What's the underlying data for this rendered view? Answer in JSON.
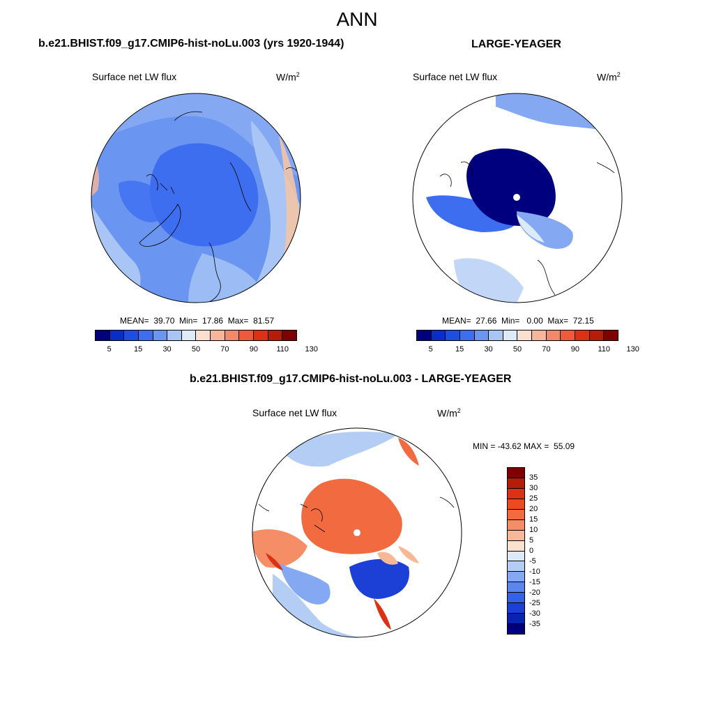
{
  "figure": {
    "season": "ANN"
  },
  "panel_left": {
    "title": "b.e21.BHIST.f09_g17.CMIP6-hist-noLu.003 (yrs 1920-1944)",
    "variable": "Surface net LW flux",
    "units": "W/m",
    "units_exp": "2",
    "stats": "MEAN=  39.70  Min=  17.86  Max=  81.57"
  },
  "panel_right": {
    "title": "LARGE-YEAGER",
    "variable": "Surface net LW flux",
    "units": "W/m",
    "units_exp": "2",
    "stats": "MEAN=  27.66  Min=   0.00  Max=  72.15"
  },
  "panel_diff": {
    "title": "b.e21.BHIST.f09_g17.CMIP6-hist-noLu.003 - LARGE-YEAGER",
    "variable": "Surface net LW flux",
    "units": "W/m",
    "units_exp": "2",
    "stats": "MIN = -43.62 MAX =  55.09"
  },
  "colorbar_abs": {
    "tick_labels": [
      "5",
      "15",
      "30",
      "50",
      "70",
      "90",
      "110",
      "130"
    ],
    "colors": [
      "#00007f",
      "#0a2cc8",
      "#1c4fe0",
      "#3d6ef0",
      "#6a96f2",
      "#a8c5f5",
      "#ddeaf8",
      "#fbe0d0",
      "#f7b69a",
      "#f3896b",
      "#ee5a3a",
      "#dc3114",
      "#b51d08",
      "#7f0000"
    ]
  },
  "colorbar_diff": {
    "tick_labels": [
      "35",
      "30",
      "25",
      "20",
      "15",
      "10",
      "5",
      "0",
      "-5",
      "-10",
      "-15",
      "-20",
      "-25",
      "-30",
      "-35"
    ],
    "colors": [
      "#7f0000",
      "#b51d08",
      "#dc3114",
      "#ee4a22",
      "#f26a3f",
      "#f58e66",
      "#f8b896",
      "#fbe2cf",
      "#dde9f8",
      "#b3cdf5",
      "#84a9f2",
      "#5a86ee",
      "#3462e6",
      "#1c40d6",
      "#0a22b0",
      "#00007f"
    ]
  }
}
